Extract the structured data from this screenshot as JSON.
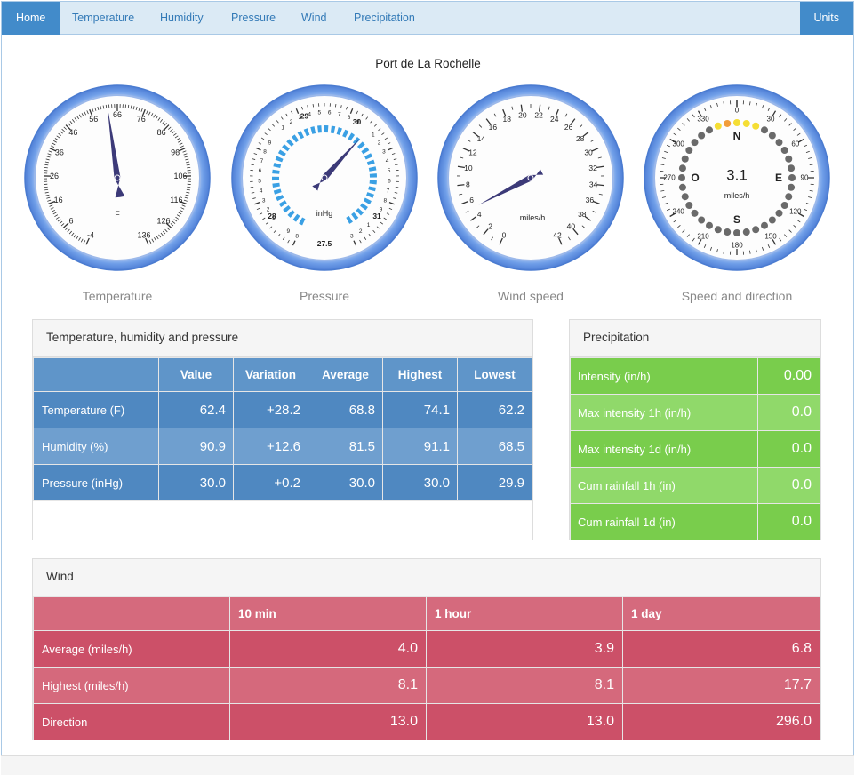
{
  "nav": {
    "items": [
      "Home",
      "Temperature",
      "Humidity",
      "Pressure",
      "Wind",
      "Precipitation"
    ],
    "units_label": "Units"
  },
  "station_name": "Port de La Rochelle",
  "gauges": {
    "temperature": {
      "caption": "Temperature",
      "unit": "F",
      "tick_labels": [
        "-4",
        "6",
        "16",
        "26",
        "36",
        "46",
        "56",
        "66",
        "76",
        "86",
        "96",
        "106",
        "116",
        "126",
        "136"
      ],
      "value": 62.4
    },
    "pressure": {
      "caption": "Pressure",
      "unit": "inHg",
      "value": 30.0
    },
    "wind_speed": {
      "caption": "Wind speed",
      "unit": "miles/h",
      "tick_labels": [
        "0",
        "2",
        "4",
        "6",
        "8",
        "10",
        "12",
        "14",
        "16",
        "18",
        "20",
        "22",
        "24",
        "26",
        "28",
        "30",
        "32",
        "34",
        "36",
        "38",
        "40",
        "42"
      ],
      "value": 4.0
    },
    "direction": {
      "caption": "Speed and direction",
      "unit": "miles/h",
      "speed_display": "3.1",
      "cardinals": {
        "n": "N",
        "e": "E",
        "s": "S",
        "w": "O"
      },
      "degree_labels": [
        "0",
        "30",
        "60",
        "90",
        "120",
        "150",
        "180",
        "210",
        "240",
        "270",
        "300",
        "330"
      ]
    }
  },
  "thp_panel": {
    "title": "Temperature, humidity and pressure",
    "headers": [
      "",
      "Value",
      "Variation",
      "Average",
      "Highest",
      "Lowest"
    ],
    "rows": [
      {
        "label": "Temperature (F)",
        "cells": [
          "62.4",
          "+28.2",
          "68.8",
          "74.1",
          "62.2"
        ]
      },
      {
        "label": "Humidity (%)",
        "cells": [
          "90.9",
          "+12.6",
          "81.5",
          "91.1",
          "68.5"
        ]
      },
      {
        "label": "Pressure (inHg)",
        "cells": [
          "30.0",
          "+0.2",
          "30.0",
          "30.0",
          "29.9"
        ]
      }
    ]
  },
  "precip_panel": {
    "title": "Precipitation",
    "rows": [
      {
        "label": "Intensity (in/h)",
        "value": "0.00"
      },
      {
        "label": "Max intensity 1h (in/h)",
        "value": "0.0"
      },
      {
        "label": "Max intensity 1d (in/h)",
        "value": "0.0"
      },
      {
        "label": "Cum rainfall 1h (in)",
        "value": "0.0"
      },
      {
        "label": "Cum rainfall 1d (in)",
        "value": "0.0"
      }
    ]
  },
  "wind_panel": {
    "title": "Wind",
    "headers": [
      "",
      "10 min",
      "1 hour",
      "1 day"
    ],
    "rows": [
      {
        "label": "Average (miles/h)",
        "cells": [
          "4.0",
          "3.9",
          "6.8"
        ]
      },
      {
        "label": "Highest (miles/h)",
        "cells": [
          "8.1",
          "8.1",
          "17.7"
        ]
      },
      {
        "label": "Direction",
        "cells": [
          "13.0",
          "13.0",
          "296.0"
        ]
      }
    ]
  }
}
